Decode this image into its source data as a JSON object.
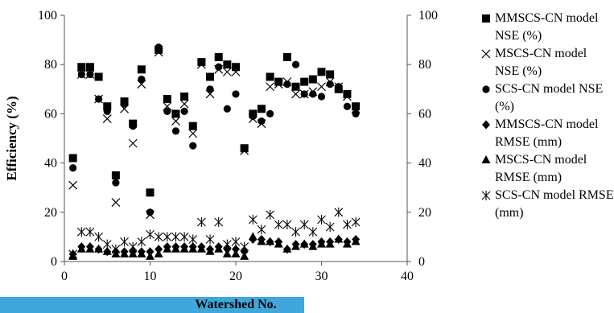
{
  "chart_data": {
    "type": "scatter",
    "xlabel": "Watershed No.",
    "ylabel": "Efficiency (%)",
    "xlim": [
      0,
      40
    ],
    "ylim": [
      0,
      100
    ],
    "y2lim": [
      0,
      100
    ],
    "xticks": [
      "0",
      "10",
      "20",
      "30",
      "40"
    ],
    "yticks": [
      "0",
      "20",
      "40",
      "60",
      "80",
      "100"
    ],
    "y2ticks": [
      "0",
      "20",
      "40",
      "60",
      "80",
      "100"
    ],
    "legend_position": "right",
    "grid": false,
    "x": [
      1,
      2,
      3,
      4,
      5,
      6,
      7,
      8,
      9,
      10,
      11,
      12,
      13,
      14,
      15,
      16,
      17,
      18,
      19,
      20,
      21,
      22,
      23,
      24,
      25,
      26,
      27,
      28,
      29,
      30,
      31,
      32,
      33,
      34
    ],
    "series": [
      {
        "name": "MMSCS-CN model NSE (%)",
        "marker": "square",
        "values": [
          42,
          79,
          79,
          75,
          63,
          35,
          65,
          56,
          78,
          28,
          86,
          66,
          60,
          67,
          55,
          81,
          75,
          83,
          80,
          79,
          46,
          60,
          62,
          75,
          73,
          83,
          71,
          73,
          74,
          77,
          76,
          70,
          68,
          63
        ]
      },
      {
        "name": "MSCS-CN model NSE (%)",
        "marker": "x",
        "values": [
          31,
          76,
          76,
          66,
          58,
          24,
          62,
          48,
          72,
          19,
          85,
          63,
          57,
          64,
          52,
          80,
          68,
          78,
          77,
          77,
          45,
          58,
          56,
          71,
          72,
          73,
          68,
          68,
          69,
          71,
          73,
          71,
          67,
          62
        ]
      },
      {
        "name": "SCS-CN model NSE (%)",
        "marker": "circle",
        "values": [
          38,
          76,
          76,
          66,
          61,
          32,
          64,
          55,
          74,
          20,
          87,
          61,
          53,
          61,
          47,
          81,
          70,
          79,
          62,
          68,
          46,
          59,
          57,
          60,
          73,
          72,
          80,
          68,
          68,
          67,
          72,
          71,
          63,
          60
        ]
      },
      {
        "name": "MMSCS-CN model RMSE (mm)",
        "marker": "diamond",
        "values": [
          3,
          6,
          6,
          5,
          4,
          4,
          4,
          4,
          4,
          4,
          5,
          6,
          6,
          6,
          6,
          6,
          5,
          6,
          5,
          5,
          4,
          9,
          9,
          8,
          8,
          5,
          7,
          7,
          7,
          8,
          8,
          9,
          8,
          9
        ]
      },
      {
        "name": "MSCS-CN model RMSE (mm)",
        "marker": "triangle",
        "values": [
          2,
          5,
          5,
          5,
          4,
          3,
          3,
          3,
          3,
          2,
          3,
          5,
          5,
          5,
          5,
          5,
          4,
          5,
          3,
          3,
          2,
          10,
          8,
          8,
          7,
          5,
          6,
          7,
          6,
          7,
          7,
          9,
          7,
          8
        ]
      },
      {
        "name": "SCS-CN model RMSE (mm)",
        "marker": "asterisk",
        "values": [
          3,
          12,
          12,
          10,
          7,
          5,
          8,
          6,
          8,
          11,
          10,
          10,
          10,
          10,
          9,
          16,
          9,
          16,
          7,
          8,
          6,
          17,
          13,
          19,
          15,
          15,
          12,
          15,
          12,
          17,
          14,
          20,
          15,
          16
        ]
      }
    ]
  }
}
